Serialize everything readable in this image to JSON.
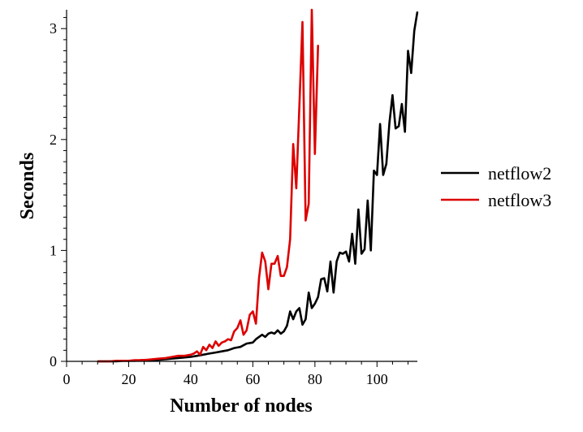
{
  "chart_data": {
    "type": "line",
    "title": "",
    "xlabel": "Number of nodes",
    "ylabel": "Seconds",
    "xlim": [
      0,
      113
    ],
    "ylim": [
      0,
      3.17
    ],
    "xticks": [
      0,
      20,
      40,
      60,
      80,
      100
    ],
    "yticks": [
      0,
      1,
      2,
      3
    ],
    "grid": false,
    "legend_position": "right",
    "series": [
      {
        "name": "netflow2",
        "color": "#000000",
        "x": [
          10,
          12,
          14,
          16,
          18,
          20,
          22,
          24,
          26,
          28,
          30,
          32,
          34,
          36,
          38,
          40,
          42,
          44,
          46,
          48,
          50,
          52,
          54,
          56,
          58,
          60,
          61,
          62,
          63,
          64,
          65,
          66,
          67,
          68,
          69,
          70,
          71,
          72,
          73,
          74,
          75,
          76,
          77,
          78,
          79,
          80,
          81,
          82,
          83,
          84,
          85,
          86,
          87,
          88,
          89,
          90,
          91,
          92,
          93,
          94,
          95,
          96,
          97,
          98,
          99,
          100,
          101,
          102,
          103,
          104,
          105,
          106,
          107,
          108,
          109,
          110,
          111,
          112,
          113
        ],
        "y": [
          0,
          0,
          0,
          0,
          0.005,
          0.005,
          0.005,
          0.01,
          0.01,
          0.01,
          0.015,
          0.02,
          0.025,
          0.03,
          0.035,
          0.04,
          0.05,
          0.06,
          0.07,
          0.08,
          0.09,
          0.1,
          0.12,
          0.13,
          0.16,
          0.17,
          0.2,
          0.22,
          0.24,
          0.22,
          0.25,
          0.26,
          0.25,
          0.28,
          0.25,
          0.27,
          0.32,
          0.45,
          0.38,
          0.45,
          0.48,
          0.33,
          0.38,
          0.62,
          0.48,
          0.52,
          0.58,
          0.74,
          0.75,
          0.63,
          0.9,
          0.62,
          0.9,
          0.98,
          0.97,
          0.99,
          0.9,
          1.15,
          0.88,
          1.37,
          0.97,
          1.01,
          1.45,
          1.0,
          1.72,
          1.68,
          2.14,
          1.68,
          1.78,
          2.15,
          2.4,
          2.1,
          2.12,
          2.32,
          2.07,
          2.8,
          2.6,
          2.98,
          3.15
        ]
      },
      {
        "name": "netflow3",
        "color": "#dd0000",
        "x": [
          10,
          12,
          14,
          16,
          18,
          20,
          22,
          24,
          26,
          28,
          30,
          32,
          34,
          36,
          38,
          40,
          41,
          42,
          43,
          44,
          45,
          46,
          47,
          48,
          49,
          50,
          51,
          52,
          53,
          54,
          55,
          56,
          57,
          58,
          59,
          60,
          61,
          62,
          63,
          64,
          65,
          66,
          67,
          68,
          69,
          70,
          71,
          72,
          73,
          74,
          75,
          76,
          77,
          78,
          79,
          80,
          81
        ],
        "y": [
          0,
          0,
          0,
          0.005,
          0.005,
          0.005,
          0.01,
          0.01,
          0.015,
          0.02,
          0.025,
          0.03,
          0.04,
          0.05,
          0.05,
          0.06,
          0.07,
          0.09,
          0.06,
          0.13,
          0.1,
          0.15,
          0.12,
          0.18,
          0.14,
          0.17,
          0.18,
          0.2,
          0.19,
          0.27,
          0.3,
          0.37,
          0.24,
          0.28,
          0.42,
          0.45,
          0.34,
          0.75,
          0.98,
          0.9,
          0.65,
          0.88,
          0.88,
          0.95,
          0.77,
          0.77,
          0.85,
          1.1,
          1.96,
          1.56,
          2.3,
          3.06,
          1.27,
          1.42,
          3.17,
          1.87,
          2.85
        ]
      }
    ]
  }
}
